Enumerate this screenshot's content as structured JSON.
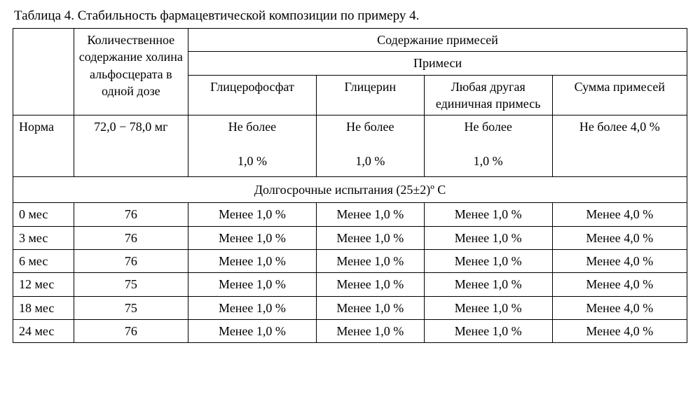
{
  "caption": "Таблица 4. Стабильность фармацевтической композиции по примеру 4.",
  "headers": {
    "col1": "Количественное содержание холина альфосцерата в одной дозе",
    "impurities_group": "Содержание примесей",
    "impurities_sub": "Примеси",
    "c_glycerophosphate": "Глицерофосфат",
    "c_glycerin": "Глицерин",
    "c_other": "Любая другая единичная примесь",
    "c_sum": "Сумма примесей"
  },
  "norma": {
    "label": "Норма",
    "dose": "72,0 − 78,0 мг",
    "g1_l1": "Не более",
    "g1_l2": "1,0 %",
    "g2_l1": "Не более",
    "g2_l2": "1,0 %",
    "g3_l1": "Не более",
    "g3_l2": "1,0 %",
    "sum": "Не более 4,0 %"
  },
  "section": "Долгосрочные испытания (25±2)º С",
  "rows": [
    {
      "t": "0 мес",
      "dose": "76",
      "g1": "Менее 1,0 %",
      "g2": "Менее 1,0 %",
      "g3": "Менее 1,0 %",
      "sum": "Менее 4,0 %"
    },
    {
      "t": "3 мес",
      "dose": "76",
      "g1": "Менее 1,0 %",
      "g2": "Менее 1,0 %",
      "g3": "Менее 1,0 %",
      "sum": "Менее 4,0 %"
    },
    {
      "t": "6 мес",
      "dose": "76",
      "g1": "Менее 1,0 %",
      "g2": "Менее 1,0 %",
      "g3": "Менее 1,0 %",
      "sum": "Менее 4,0 %"
    },
    {
      "t": "12 мес",
      "dose": "75",
      "g1": "Менее 1,0 %",
      "g2": "Менее 1,0 %",
      "g3": "Менее 1,0 %",
      "sum": "Менее 4,0 %"
    },
    {
      "t": "18 мес",
      "dose": "75",
      "g1": "Менее 1,0 %",
      "g2": "Менее 1,0 %",
      "g3": "Менее 1,0 %",
      "sum": "Менее 4,0 %"
    },
    {
      "t": "24 мес",
      "dose": "76",
      "g1": "Менее 1,0 %",
      "g2": "Менее 1,0 %",
      "g3": "Менее 1,0 %",
      "sum": "Менее 4,0 %"
    }
  ],
  "style": {
    "font_family": "Times New Roman",
    "base_font_size_pt": 14,
    "border_color": "#000000",
    "background_color": "#ffffff",
    "text_color": "#000000",
    "col_widths_pct": [
      9,
      17,
      19,
      16,
      19,
      20
    ]
  }
}
